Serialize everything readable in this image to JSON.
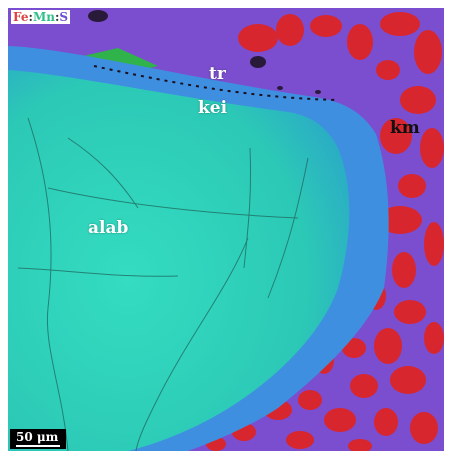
{
  "legend": {
    "elements": [
      {
        "symbol": "Fe",
        "color": "#e04040"
      },
      {
        "symbol": "Mn",
        "color": "#2fc08a"
      },
      {
        "symbol": "S",
        "color": "#6a4fd8"
      }
    ],
    "separator": ":"
  },
  "phases": {
    "tr": "tr",
    "kei": "kei",
    "km": "km",
    "alab": "alab"
  },
  "scale_bar": {
    "label": "50 μm"
  },
  "colors": {
    "matrix": "#7b4fd0",
    "alabandite": "#2ecfb5",
    "keilite": "#3f8fe0",
    "kamacite": "#d8262e",
    "troilite": "#8a56d8"
  }
}
